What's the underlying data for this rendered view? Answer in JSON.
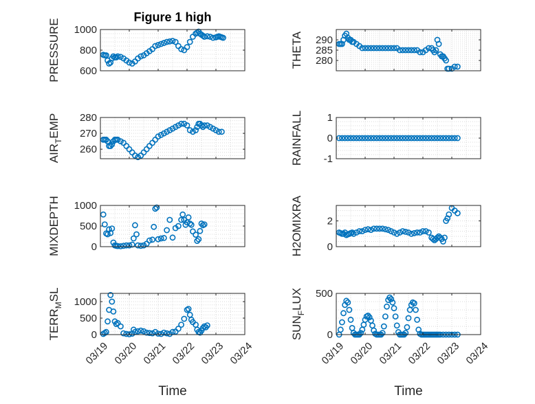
{
  "figure": {
    "title": "Figure 1 high",
    "xlabel": "Time",
    "x_tick_labels": [
      "03/19",
      "03/20",
      "03/21",
      "03/22",
      "03/23",
      "03/24"
    ],
    "marker_color": "#0072BD",
    "grid_color": "#d9d9d9",
    "axis_color": "#262626"
  },
  "chart_data": [
    {
      "type": "scatter",
      "ylabel": "PRESSURE",
      "title": "Figure 1 high",
      "xlim": [
        0,
        5
      ],
      "ylim": [
        600,
        1000
      ],
      "yticks": [
        600,
        800,
        1000
      ],
      "ytick_labels": [
        "600",
        "800",
        "1000"
      ],
      "x": [
        0.1,
        0.15,
        0.2,
        0.25,
        0.3,
        0.35,
        0.4,
        0.45,
        0.5,
        0.55,
        0.6,
        0.7,
        0.8,
        0.9,
        1.0,
        1.1,
        1.2,
        1.3,
        1.4,
        1.5,
        1.6,
        1.7,
        1.8,
        1.9,
        2.0,
        2.1,
        2.2,
        2.3,
        2.4,
        2.5,
        2.6,
        2.7,
        2.8,
        2.9,
        3.0,
        3.1,
        3.2,
        3.3,
        3.35,
        3.4,
        3.45,
        3.5,
        3.55,
        3.6,
        3.7,
        3.8,
        3.9,
        4.0,
        4.05,
        4.1,
        4.15,
        4.2,
        4.25
      ],
      "y": [
        755,
        750,
        750,
        700,
        670,
        680,
        720,
        740,
        730,
        730,
        740,
        735,
        720,
        700,
        680,
        670,
        690,
        720,
        740,
        750,
        770,
        790,
        810,
        840,
        850,
        860,
        870,
        880,
        885,
        890,
        880,
        840,
        810,
        800,
        830,
        880,
        930,
        960,
        970,
        980,
        960,
        950,
        940,
        930,
        935,
        930,
        920,
        925,
        930,
        935,
        930,
        925,
        920
      ]
    },
    {
      "type": "scatter",
      "ylabel": "THETA",
      "xlim": [
        0,
        5
      ],
      "ylim": [
        275,
        295
      ],
      "yticks": [
        280,
        285,
        290
      ],
      "ytick_labels": [
        "280",
        "285",
        "290"
      ],
      "x": [
        0.1,
        0.15,
        0.2,
        0.25,
        0.3,
        0.35,
        0.4,
        0.45,
        0.5,
        0.55,
        0.6,
        0.7,
        0.8,
        0.9,
        1.0,
        1.1,
        1.2,
        1.3,
        1.4,
        1.5,
        1.6,
        1.7,
        1.8,
        1.9,
        2.0,
        2.1,
        2.2,
        2.3,
        2.4,
        2.5,
        2.6,
        2.7,
        2.8,
        2.9,
        3.0,
        3.1,
        3.2,
        3.3,
        3.35,
        3.4,
        3.45,
        3.5,
        3.55,
        3.6,
        3.65,
        3.7,
        3.75,
        3.8,
        3.85,
        3.9,
        4.0,
        4.1,
        4.2
      ],
      "y": [
        288,
        288,
        288,
        290,
        292,
        293,
        291,
        290,
        290,
        289,
        289,
        288,
        287,
        286,
        286,
        286,
        286,
        286,
        286,
        286,
        286,
        286,
        286,
        286,
        286,
        286,
        285,
        285,
        285,
        285,
        285,
        285,
        285,
        284,
        284,
        285,
        286,
        286,
        285,
        284,
        285,
        290,
        288,
        283,
        282,
        282,
        281,
        280,
        276,
        276,
        276,
        277,
        277
      ]
    },
    {
      "type": "scatter",
      "ylabel": "AIR_TEMP",
      "xlim": [
        0,
        5
      ],
      "ylim": [
        254,
        280
      ],
      "yticks": [
        260,
        270,
        280
      ],
      "ytick_labels": [
        "260",
        "270",
        "280"
      ],
      "x": [
        0.1,
        0.15,
        0.2,
        0.25,
        0.3,
        0.35,
        0.4,
        0.45,
        0.5,
        0.55,
        0.6,
        0.7,
        0.8,
        0.9,
        1.0,
        1.1,
        1.2,
        1.3,
        1.4,
        1.5,
        1.6,
        1.7,
        1.8,
        1.9,
        2.0,
        2.1,
        2.2,
        2.3,
        2.4,
        2.5,
        2.6,
        2.7,
        2.8,
        2.9,
        3.0,
        3.1,
        3.2,
        3.3,
        3.35,
        3.4,
        3.45,
        3.5,
        3.55,
        3.6,
        3.7,
        3.8,
        3.9,
        4.0,
        4.1,
        4.2
      ],
      "y": [
        266,
        266,
        266,
        265,
        262,
        262,
        263,
        265,
        266,
        266,
        266,
        265,
        264,
        262,
        260,
        258,
        256,
        255,
        256,
        258,
        260,
        262,
        264,
        266,
        268,
        269,
        270,
        271,
        272,
        273,
        274,
        275,
        276,
        276,
        275,
        272,
        271,
        272,
        274,
        276,
        276,
        275,
        274,
        275,
        275,
        274,
        273,
        272,
        271,
        271
      ]
    },
    {
      "type": "scatter",
      "ylabel": "RAINFALL",
      "xlim": [
        0,
        5
      ],
      "ylim": [
        -1,
        1
      ],
      "yticks": [
        -1,
        0,
        1
      ],
      "ytick_labels": [
        "-1",
        "0",
        "1"
      ],
      "x": [
        0.1,
        0.2,
        0.3,
        0.4,
        0.5,
        0.6,
        0.7,
        0.8,
        0.9,
        1.0,
        1.1,
        1.2,
        1.3,
        1.4,
        1.5,
        1.6,
        1.7,
        1.8,
        1.9,
        2.0,
        2.1,
        2.2,
        2.3,
        2.4,
        2.5,
        2.6,
        2.7,
        2.8,
        2.9,
        3.0,
        3.1,
        3.2,
        3.3,
        3.4,
        3.5,
        3.6,
        3.7,
        3.8,
        3.9,
        4.0,
        4.1,
        4.2
      ],
      "y": [
        0,
        0,
        0,
        0,
        0,
        0,
        0,
        0,
        0,
        0,
        0,
        0,
        0,
        0,
        0,
        0,
        0,
        0,
        0,
        0,
        0,
        0,
        0,
        0,
        0,
        0,
        0,
        0,
        0,
        0,
        0,
        0,
        0,
        0,
        0,
        0,
        0,
        0,
        0,
        0,
        0,
        0
      ]
    },
    {
      "type": "scatter",
      "ylabel": "MIXDEPTH",
      "xlim": [
        0,
        5
      ],
      "ylim": [
        0,
        1000
      ],
      "yticks": [
        0,
        500,
        1000
      ],
      "ytick_labels": [
        "0",
        "500",
        "1000"
      ],
      "x": [
        0.1,
        0.15,
        0.2,
        0.25,
        0.3,
        0.35,
        0.4,
        0.45,
        0.5,
        0.55,
        0.6,
        0.7,
        0.8,
        0.9,
        1.0,
        1.1,
        1.15,
        1.2,
        1.25,
        1.3,
        1.4,
        1.5,
        1.6,
        1.7,
        1.8,
        1.85,
        1.9,
        1.95,
        2.0,
        2.1,
        2.2,
        2.3,
        2.4,
        2.5,
        2.6,
        2.7,
        2.8,
        2.85,
        2.9,
        2.95,
        3.0,
        3.05,
        3.1,
        3.15,
        3.2,
        3.3,
        3.35,
        3.4,
        3.45,
        3.5,
        3.55,
        3.6
      ],
      "y": [
        780,
        540,
        320,
        300,
        420,
        330,
        440,
        100,
        30,
        20,
        15,
        10,
        20,
        30,
        30,
        50,
        200,
        520,
        300,
        30,
        20,
        30,
        70,
        150,
        170,
        480,
        920,
        950,
        180,
        200,
        210,
        400,
        650,
        220,
        450,
        500,
        650,
        780,
        650,
        530,
        590,
        710,
        560,
        530,
        370,
        290,
        140,
        180,
        380,
        560,
        520,
        540
      ]
    },
    {
      "type": "scatter",
      "ylabel": "H2OMIXRA",
      "xlim": [
        0,
        5
      ],
      "ylim": [
        0,
        3.2
      ],
      "yticks": [
        0,
        2
      ],
      "ytick_labels": [
        "0",
        "2"
      ],
      "x": [
        0.1,
        0.15,
        0.2,
        0.25,
        0.3,
        0.35,
        0.4,
        0.45,
        0.5,
        0.55,
        0.6,
        0.7,
        0.8,
        0.9,
        1.0,
        1.1,
        1.2,
        1.3,
        1.4,
        1.5,
        1.6,
        1.7,
        1.8,
        1.9,
        2.0,
        2.1,
        2.2,
        2.3,
        2.4,
        2.5,
        2.6,
        2.7,
        2.8,
        2.9,
        3.0,
        3.1,
        3.2,
        3.3,
        3.35,
        3.4,
        3.45,
        3.5,
        3.55,
        3.6,
        3.65,
        3.7,
        3.75,
        3.8,
        3.85,
        3.9,
        4.0,
        4.1,
        4.2
      ],
      "y": [
        1.1,
        1.05,
        1.0,
        1.0,
        1.1,
        0.9,
        0.95,
        1.0,
        1.05,
        1.1,
        1.0,
        1.1,
        1.2,
        1.2,
        1.3,
        1.35,
        1.3,
        1.4,
        1.4,
        1.4,
        1.4,
        1.35,
        1.3,
        1.2,
        1.1,
        1.0,
        1.1,
        1.2,
        1.15,
        1.1,
        1.0,
        1.05,
        1.1,
        1.1,
        1.2,
        1.2,
        1.1,
        0.7,
        0.6,
        0.5,
        0.6,
        0.7,
        0.8,
        0.7,
        0.6,
        0.4,
        0.7,
        2.0,
        2.2,
        2.5,
        3.0,
        2.8,
        2.6
      ]
    },
    {
      "type": "scatter",
      "ylabel": "TERR_MSL",
      "xlim": [
        0,
        5
      ],
      "ylim": [
        0,
        1250
      ],
      "yticks": [
        0,
        500,
        1000
      ],
      "ytick_labels": [
        "0",
        "500",
        "1000"
      ],
      "x": [
        0.1,
        0.15,
        0.2,
        0.25,
        0.3,
        0.35,
        0.4,
        0.45,
        0.5,
        0.55,
        0.6,
        0.7,
        0.8,
        0.9,
        1.0,
        1.1,
        1.15,
        1.2,
        1.3,
        1.4,
        1.5,
        1.6,
        1.7,
        1.8,
        1.9,
        2.0,
        2.1,
        2.2,
        2.3,
        2.4,
        2.5,
        2.6,
        2.7,
        2.8,
        2.9,
        3.0,
        3.05,
        3.1,
        3.15,
        3.2,
        3.3,
        3.35,
        3.4,
        3.45,
        3.5,
        3.55,
        3.6,
        3.65,
        3.7
      ],
      "y": [
        20,
        50,
        80,
        400,
        750,
        1200,
        1000,
        700,
        400,
        320,
        350,
        250,
        40,
        20,
        10,
        30,
        150,
        80,
        100,
        120,
        100,
        60,
        50,
        40,
        80,
        30,
        20,
        60,
        40,
        20,
        80,
        90,
        180,
        300,
        480,
        750,
        780,
        600,
        450,
        380,
        300,
        150,
        80,
        60,
        120,
        200,
        250,
        220,
        280
      ]
    },
    {
      "type": "scatter",
      "ylabel": "SUN_FLUX",
      "xlim": [
        0,
        5
      ],
      "ylim": [
        0,
        500
      ],
      "yticks": [
        0,
        500
      ],
      "ytick_labels": [
        "0",
        "500"
      ],
      "x": [
        0.1,
        0.15,
        0.2,
        0.25,
        0.3,
        0.35,
        0.4,
        0.45,
        0.5,
        0.55,
        0.6,
        0.65,
        0.7,
        0.75,
        0.8,
        0.85,
        0.9,
        0.95,
        1.0,
        1.05,
        1.1,
        1.15,
        1.2,
        1.25,
        1.3,
        1.35,
        1.4,
        1.45,
        1.5,
        1.55,
        1.6,
        1.65,
        1.7,
        1.75,
        1.8,
        1.85,
        1.9,
        1.95,
        2.0,
        2.05,
        2.1,
        2.15,
        2.2,
        2.25,
        2.3,
        2.35,
        2.4,
        2.45,
        2.5,
        2.55,
        2.6,
        2.65,
        2.7,
        2.75,
        2.8,
        2.85,
        2.9,
        2.95,
        3.0,
        3.05,
        3.1,
        3.15,
        3.2,
        3.25,
        3.3,
        3.35,
        3.4,
        3.45,
        3.5,
        3.55,
        3.6,
        3.7,
        3.8,
        3.9,
        4.0,
        4.1,
        4.2
      ],
      "y": [
        0,
        60,
        150,
        260,
        360,
        410,
        390,
        300,
        180,
        80,
        20,
        0,
        0,
        0,
        0,
        20,
        60,
        120,
        180,
        220,
        230,
        210,
        170,
        110,
        50,
        10,
        0,
        0,
        0,
        0,
        20,
        100,
        220,
        340,
        420,
        450,
        430,
        390,
        320,
        220,
        110,
        30,
        0,
        0,
        0,
        0,
        20,
        90,
        200,
        300,
        360,
        390,
        380,
        300,
        180,
        60,
        10,
        0,
        0,
        0,
        0,
        0,
        0,
        0,
        0,
        0,
        0,
        0,
        0,
        0,
        0,
        0,
        0,
        0,
        0,
        0,
        0
      ]
    }
  ]
}
